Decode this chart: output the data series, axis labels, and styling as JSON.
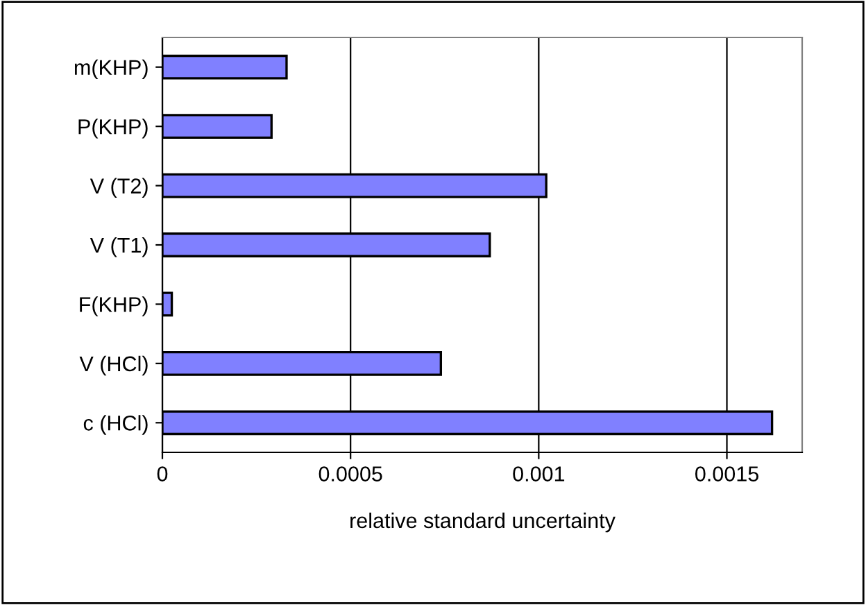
{
  "chart_data": {
    "type": "bar",
    "orientation": "horizontal",
    "xlabel": "relative standard uncertainty",
    "categories": [
      "m(KHP)",
      "P(KHP)",
      "V (T2)",
      "V (T1)",
      "F(KHP)",
      "V (HCl)",
      "c (HCl)"
    ],
    "values": [
      0.00033,
      0.00029,
      0.00102,
      0.00087,
      2.5e-05,
      0.00074,
      0.00162
    ],
    "color": "#8080ff",
    "xlim": [
      0,
      0.0017
    ],
    "xticks": [
      0,
      0.0005,
      0.001,
      0.0015
    ],
    "grid": "x",
    "legend": false
  }
}
